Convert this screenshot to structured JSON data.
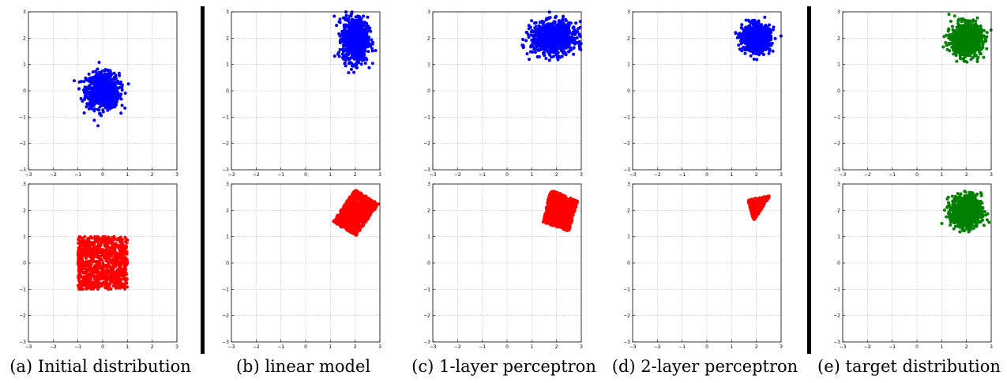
{
  "columns": [
    {
      "caption": "(a) Initial distribution"
    },
    {
      "caption": "(b) linear model"
    },
    {
      "caption": "(c) 1-layer perceptron"
    },
    {
      "caption": "(d) 2-layer perceptron"
    },
    {
      "caption": "(e) target distribution"
    }
  ],
  "chart_data": [
    {
      "panel": "a-top",
      "type": "scatter",
      "xlim": [
        -3,
        3
      ],
      "ylim": [
        -3,
        3
      ],
      "xticks": [
        -3,
        -2,
        -1,
        0,
        1,
        2,
        3
      ],
      "yticks": [
        -3,
        -2,
        -1,
        0,
        1,
        2,
        3
      ],
      "grid": true,
      "color": "#0000ff",
      "distribution": "gaussian",
      "center": [
        0,
        0
      ],
      "spread": [
        0.33,
        0.33
      ],
      "n": 900
    },
    {
      "panel": "a-bottom",
      "type": "scatter",
      "xlim": [
        -3,
        3
      ],
      "ylim": [
        -3,
        3
      ],
      "xticks": [
        -3,
        -2,
        -1,
        0,
        1,
        2,
        3
      ],
      "yticks": [
        -3,
        -2,
        -1,
        0,
        1,
        2,
        3
      ],
      "grid": true,
      "color": "#ff0000",
      "distribution": "uniform-square",
      "corners": [
        [
          -1,
          -1
        ],
        [
          1,
          -1
        ],
        [
          1,
          1
        ],
        [
          -1,
          1
        ]
      ],
      "n": 900
    },
    {
      "panel": "b-top",
      "type": "scatter",
      "xlim": [
        -3,
        3
      ],
      "ylim": [
        -3,
        3
      ],
      "xticks": [
        -3,
        -2,
        -1,
        0,
        1,
        2,
        3
      ],
      "yticks": [
        -3,
        -2,
        -1,
        0,
        1,
        2,
        3
      ],
      "grid": true,
      "color": "#0000ff",
      "distribution": "gaussian",
      "center": [
        2.0,
        1.95
      ],
      "spread": [
        0.25,
        0.42
      ],
      "n": 900
    },
    {
      "panel": "b-bottom",
      "type": "scatter",
      "xlim": [
        -3,
        3
      ],
      "ylim": [
        -3,
        3
      ],
      "xticks": [
        -3,
        -2,
        -1,
        0,
        1,
        2,
        3
      ],
      "yticks": [
        -3,
        -2,
        -1,
        0,
        1,
        2,
        3
      ],
      "grid": true,
      "color": "#ff0000",
      "distribution": "uniform-square",
      "corners": [
        [
          1.1,
          1.55
        ],
        [
          2.05,
          1.05
        ],
        [
          2.95,
          2.25
        ],
        [
          2.0,
          2.8
        ]
      ],
      "n": 900
    },
    {
      "panel": "c-top",
      "type": "scatter",
      "xlim": [
        -3,
        3
      ],
      "ylim": [
        -3,
        3
      ],
      "xticks": [
        -3,
        -2,
        -1,
        0,
        1,
        2,
        3
      ],
      "yticks": [
        -3,
        -2,
        -1,
        0,
        1,
        2,
        3
      ],
      "grid": true,
      "color": "#0000ff",
      "distribution": "gaussian",
      "center": [
        1.9,
        2.0
      ],
      "spread": [
        0.45,
        0.3
      ],
      "n": 900
    },
    {
      "panel": "c-bottom",
      "type": "scatter",
      "xlim": [
        -3,
        3
      ],
      "ylim": [
        -3,
        3
      ],
      "xticks": [
        -3,
        -2,
        -1,
        0,
        1,
        2,
        3
      ],
      "yticks": [
        -3,
        -2,
        -1,
        0,
        1,
        2,
        3
      ],
      "grid": true,
      "color": "#ff0000",
      "distribution": "uniform-square",
      "corners": [
        [
          1.45,
          1.55
        ],
        [
          2.5,
          1.2
        ],
        [
          2.85,
          2.35
        ],
        [
          1.75,
          2.8
        ]
      ],
      "n": 900
    },
    {
      "panel": "d-top",
      "type": "scatter",
      "xlim": [
        -3,
        3
      ],
      "ylim": [
        -3,
        3
      ],
      "xticks": [
        -3,
        -2,
        -1,
        0,
        1,
        2,
        3
      ],
      "yticks": [
        -3,
        -2,
        -1,
        0,
        1,
        2,
        3
      ],
      "grid": true,
      "color": "#0000ff",
      "distribution": "gaussian",
      "center": [
        2.0,
        2.0
      ],
      "spread": [
        0.28,
        0.24
      ],
      "n": 900
    },
    {
      "panel": "d-bottom",
      "type": "scatter",
      "xlim": [
        -3,
        3
      ],
      "ylim": [
        -3,
        3
      ],
      "xticks": [
        -3,
        -2,
        -1,
        0,
        1,
        2,
        3
      ],
      "yticks": [
        -3,
        -2,
        -1,
        0,
        1,
        2,
        3
      ],
      "grid": true,
      "color": "#ff0000",
      "distribution": "uniform-triangle",
      "corners": [
        [
          1.65,
          2.4
        ],
        [
          2.55,
          2.55
        ],
        [
          1.9,
          1.6
        ]
      ],
      "n": 500
    },
    {
      "panel": "e-top",
      "type": "scatter",
      "xlim": [
        -3,
        3
      ],
      "ylim": [
        -3,
        3
      ],
      "xticks": [
        -3,
        -2,
        -1,
        0,
        1,
        2,
        3
      ],
      "yticks": [
        -3,
        -2,
        -1,
        0,
        1,
        2,
        3
      ],
      "grid": true,
      "color": "#007f00",
      "distribution": "gaussian",
      "center": [
        2.0,
        1.95
      ],
      "spread": [
        0.3,
        0.3
      ],
      "n": 900
    },
    {
      "panel": "e-bottom",
      "type": "scatter",
      "xlim": [
        -3,
        3
      ],
      "ylim": [
        -3,
        3
      ],
      "xticks": [
        -3,
        -2,
        -1,
        0,
        1,
        2,
        3
      ],
      "yticks": [
        -3,
        -2,
        -1,
        0,
        1,
        2,
        3
      ],
      "grid": true,
      "color": "#007f00",
      "distribution": "gaussian",
      "center": [
        2.0,
        1.95
      ],
      "spread": [
        0.3,
        0.3
      ],
      "n": 900
    }
  ]
}
